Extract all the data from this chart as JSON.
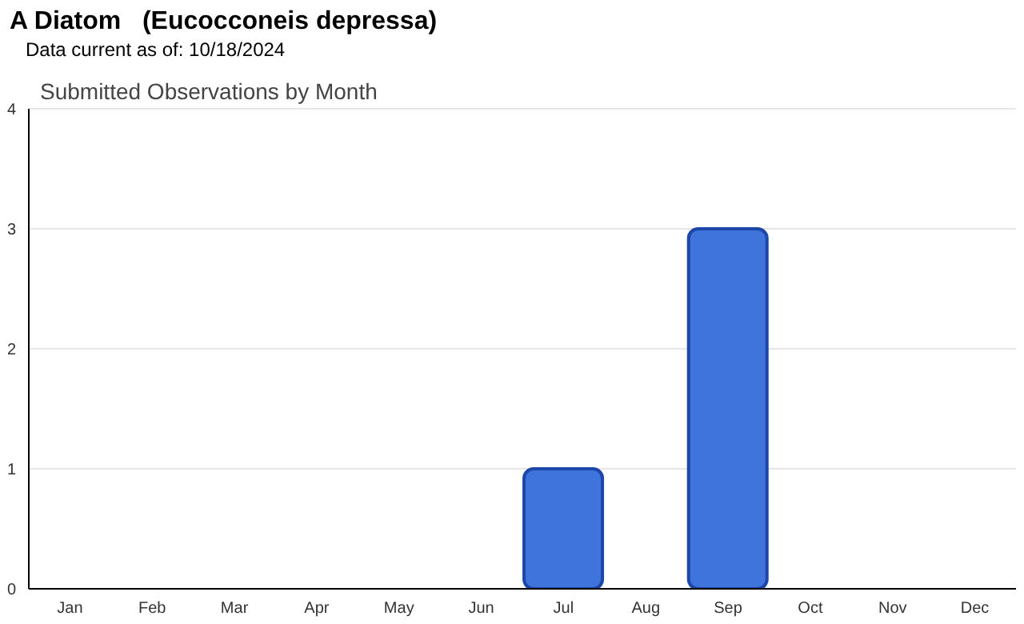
{
  "chart_data": {
    "type": "bar",
    "title": "A Diatom   (Eucocconeis depressa)",
    "subtitle": "Data current as of: 10/18/2024",
    "annotations": [
      "Submitted Observations by Month"
    ],
    "categories": [
      "Jan",
      "Feb",
      "Mar",
      "Apr",
      "May",
      "Jun",
      "Jul",
      "Aug",
      "Sep",
      "Oct",
      "Nov",
      "Dec"
    ],
    "values": [
      0,
      0,
      0,
      0,
      0,
      0,
      1,
      0,
      3,
      0,
      0,
      0
    ],
    "color": "#3f74dc",
    "ylim": [
      0,
      4
    ],
    "yticks": [
      0,
      1,
      2,
      3,
      4
    ],
    "grid": "y"
  }
}
